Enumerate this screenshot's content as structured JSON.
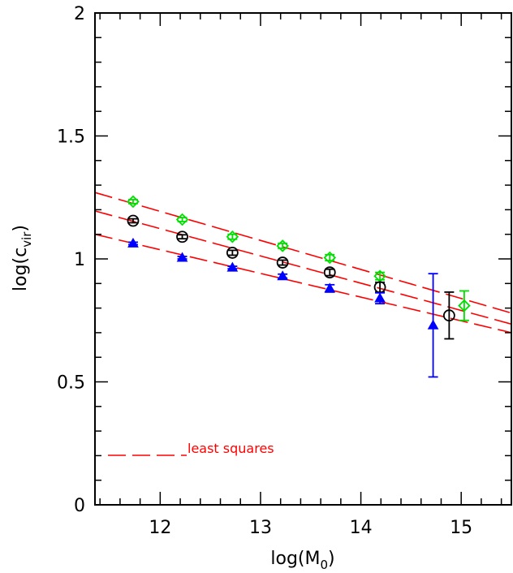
{
  "chart_data": {
    "type": "scatter",
    "xlabel": {
      "pre": "log(M",
      "sub": "0",
      "post": ")"
    },
    "ylabel": {
      "pre": "log(c",
      "sub": "vir",
      "post": ")"
    },
    "xlim": [
      11.35,
      15.5
    ],
    "ylim": [
      0,
      2
    ],
    "xticks": {
      "major": [
        "12",
        "13",
        "14",
        "15"
      ],
      "minor_step": 0.2
    },
    "yticks": {
      "major": [
        "0",
        "0.5",
        "1",
        "1.5",
        "2"
      ],
      "minor_step": 0.1
    },
    "grid": false,
    "legend": {
      "position": "bottom-left",
      "label": "least squares",
      "line_style": "dashed",
      "color": "#ff0000"
    },
    "colors": {
      "green": "#00e000",
      "black": "#000000",
      "blue": "#0000ff",
      "fit": "#ff0000"
    },
    "series": [
      {
        "marker": "diamond-open",
        "color": "#00e000",
        "points": [
          {
            "x": 11.73,
            "y": 1.233,
            "err": 0.008
          },
          {
            "x": 12.22,
            "y": 1.16,
            "err": 0.008
          },
          {
            "x": 12.72,
            "y": 1.09,
            "err": 0.01
          },
          {
            "x": 13.22,
            "y": 1.053,
            "err": 0.01
          },
          {
            "x": 13.69,
            "y": 1.005,
            "err": 0.012
          },
          {
            "x": 14.19,
            "y": 0.93,
            "err": 0.015
          },
          {
            "x": 15.03,
            "y": 0.81,
            "err": 0.06
          }
        ],
        "fit": [
          [
            11.35,
            1.27
          ],
          [
            15.5,
            0.78
          ]
        ]
      },
      {
        "marker": "circle-open",
        "color": "#000000",
        "points": [
          {
            "x": 11.73,
            "y": 1.155,
            "err": 0.008
          },
          {
            "x": 12.22,
            "y": 1.09,
            "err": 0.008
          },
          {
            "x": 12.72,
            "y": 1.025,
            "err": 0.01
          },
          {
            "x": 13.22,
            "y": 0.985,
            "err": 0.01
          },
          {
            "x": 13.69,
            "y": 0.945,
            "err": 0.013
          },
          {
            "x": 14.19,
            "y": 0.885,
            "err": 0.02
          },
          {
            "x": 14.88,
            "y": 0.77,
            "err": 0.095
          }
        ],
        "fit": [
          [
            11.35,
            1.195
          ],
          [
            15.5,
            0.735
          ]
        ]
      },
      {
        "marker": "triangle-filled",
        "color": "#0000ff",
        "points": [
          {
            "x": 11.73,
            "y": 1.063,
            "err": 0.005
          },
          {
            "x": 12.22,
            "y": 1.005,
            "err": 0.005
          },
          {
            "x": 12.72,
            "y": 0.965,
            "err": 0.005
          },
          {
            "x": 13.22,
            "y": 0.93,
            "err": 0.008
          },
          {
            "x": 13.69,
            "y": 0.88,
            "err": 0.015
          },
          {
            "x": 14.19,
            "y": 0.84,
            "err": 0.022
          },
          {
            "x": 14.72,
            "y": 0.73,
            "err": 0.21
          }
        ],
        "fit": [
          [
            11.35,
            1.1
          ],
          [
            15.5,
            0.7
          ]
        ]
      }
    ]
  }
}
